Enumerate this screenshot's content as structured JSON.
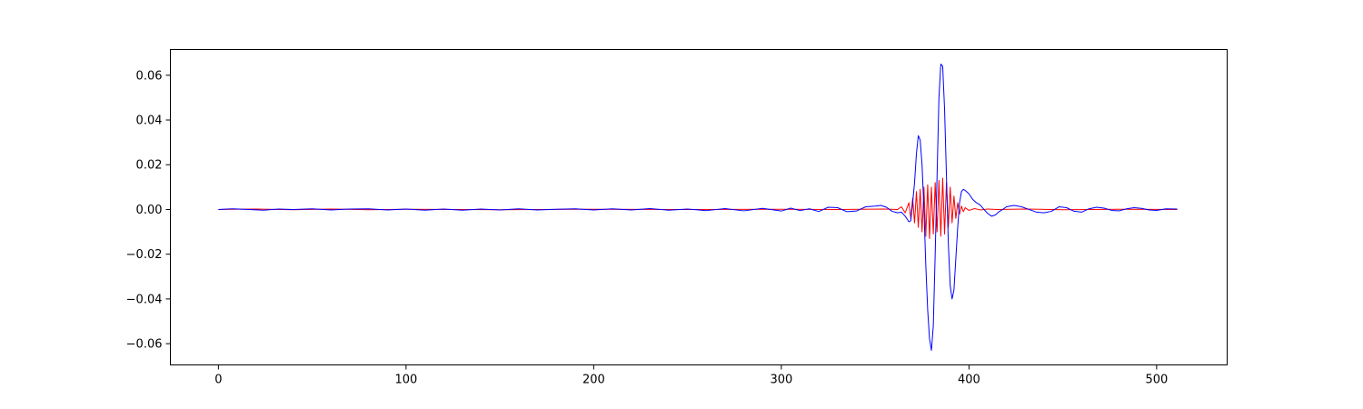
{
  "chart_data": {
    "type": "line",
    "title": "",
    "xlabel": "",
    "ylabel": "",
    "xlim": [
      -25.6,
      537.6
    ],
    "ylim": [
      -0.0695,
      0.0715
    ],
    "xticks": [
      0,
      100,
      200,
      300,
      400,
      500
    ],
    "xtick_labels": [
      "0",
      "100",
      "200",
      "300",
      "400",
      "500"
    ],
    "yticks": [
      -0.06,
      -0.04,
      -0.02,
      0.0,
      0.02,
      0.04,
      0.06
    ],
    "ytick_labels": [
      "−0.06",
      "−0.04",
      "−0.02",
      "0.00",
      "0.02",
      "0.04",
      "0.06"
    ],
    "grid": false,
    "legend": "none",
    "series": [
      {
        "color": "#ff0000",
        "points": [
          [
            0,
            0.0
          ],
          [
            20,
            0.0002
          ],
          [
            40,
            -0.0001
          ],
          [
            60,
            0.0002
          ],
          [
            80,
            -0.0001
          ],
          [
            100,
            0.0001
          ],
          [
            150,
            -0.0001
          ],
          [
            200,
            0.0001
          ],
          [
            250,
            0.0
          ],
          [
            300,
            0.0001
          ],
          [
            330,
            0.0
          ],
          [
            355,
            0.0002
          ],
          [
            362,
            0.0
          ],
          [
            364,
            0.0012
          ],
          [
            366,
            -0.0015
          ],
          [
            368,
            0.003
          ],
          [
            369,
            -0.004
          ],
          [
            370,
            0.005
          ],
          [
            371,
            -0.006
          ],
          [
            372,
            0.008
          ],
          [
            373,
            -0.008
          ],
          [
            374,
            0.009
          ],
          [
            375,
            -0.01
          ],
          [
            376,
            0.01
          ],
          [
            377,
            -0.012
          ],
          [
            378,
            0.011
          ],
          [
            379,
            -0.013
          ],
          [
            380,
            0.01
          ],
          [
            381,
            -0.011
          ],
          [
            382,
            0.012
          ],
          [
            383,
            -0.01
          ],
          [
            384,
            0.013
          ],
          [
            385,
            -0.012
          ],
          [
            386,
            0.014
          ],
          [
            387,
            -0.011
          ],
          [
            388,
            0.012
          ],
          [
            389,
            -0.008
          ],
          [
            390,
            0.01
          ],
          [
            391,
            -0.006
          ],
          [
            392,
            0.006
          ],
          [
            393,
            -0.004
          ],
          [
            394,
            0.003
          ],
          [
            395,
            -0.002
          ],
          [
            396,
            0.0015
          ],
          [
            397,
            -0.001
          ],
          [
            398,
            0.0008
          ],
          [
            400,
            -0.0004
          ],
          [
            403,
            0.0004
          ],
          [
            406,
            -0.0002
          ],
          [
            410,
            0.0002
          ],
          [
            415,
            0.0
          ],
          [
            430,
            0.0002
          ],
          [
            450,
            -0.0001
          ],
          [
            480,
            0.0001
          ],
          [
            511,
            0.0
          ]
        ]
      },
      {
        "color": "#0000ff",
        "points": [
          [
            0,
            0.0
          ],
          [
            8,
            0.0003
          ],
          [
            16,
            0.0
          ],
          [
            24,
            -0.0003
          ],
          [
            32,
            0.0002
          ],
          [
            40,
            0.0
          ],
          [
            50,
            0.0003
          ],
          [
            60,
            -0.0002
          ],
          [
            70,
            0.0002
          ],
          [
            80,
            0.0003
          ],
          [
            90,
            -0.0002
          ],
          [
            100,
            0.0002
          ],
          [
            110,
            -0.0003
          ],
          [
            120,
            0.0002
          ],
          [
            130,
            -0.0003
          ],
          [
            140,
            0.0002
          ],
          [
            150,
            -0.0002
          ],
          [
            160,
            0.0003
          ],
          [
            170,
            -0.0002
          ],
          [
            180,
            0.0001
          ],
          [
            190,
            0.0003
          ],
          [
            200,
            -0.0002
          ],
          [
            210,
            0.0003
          ],
          [
            220,
            -0.0002
          ],
          [
            230,
            0.0004
          ],
          [
            240,
            -0.0003
          ],
          [
            250,
            0.0002
          ],
          [
            260,
            -0.0005
          ],
          [
            270,
            0.0004
          ],
          [
            280,
            -0.0006
          ],
          [
            290,
            0.0005
          ],
          [
            300,
            -0.0007
          ],
          [
            305,
            0.0006
          ],
          [
            310,
            -0.0005
          ],
          [
            315,
            0.0003
          ],
          [
            320,
            -0.0009
          ],
          [
            325,
            0.001
          ],
          [
            330,
            0.0008
          ],
          [
            335,
            -0.001
          ],
          [
            340,
            -0.0007
          ],
          [
            345,
            0.0012
          ],
          [
            350,
            0.0015
          ],
          [
            353,
            0.0018
          ],
          [
            356,
            0.001
          ],
          [
            359,
            -0.0008
          ],
          [
            362,
            -0.0015
          ],
          [
            364,
            -0.0012
          ],
          [
            366,
            -0.003
          ],
          [
            368,
            -0.0055
          ],
          [
            369,
            -0.005
          ],
          [
            370,
            0.003
          ],
          [
            371,
            0.012
          ],
          [
            372,
            0.025
          ],
          [
            373,
            0.033
          ],
          [
            374,
            0.031
          ],
          [
            375,
            0.02
          ],
          [
            376,
            0.0
          ],
          [
            377,
            -0.025
          ],
          [
            378,
            -0.045
          ],
          [
            379,
            -0.058
          ],
          [
            380,
            -0.063
          ],
          [
            381,
            -0.052
          ],
          [
            382,
            -0.02
          ],
          [
            383,
            0.015
          ],
          [
            384,
            0.05
          ],
          [
            385,
            0.065
          ],
          [
            386,
            0.064
          ],
          [
            387,
            0.045
          ],
          [
            388,
            0.015
          ],
          [
            389,
            -0.015
          ],
          [
            390,
            -0.034
          ],
          [
            391,
            -0.04
          ],
          [
            392,
            -0.036
          ],
          [
            393,
            -0.022
          ],
          [
            394,
            -0.008
          ],
          [
            395,
            0.003
          ],
          [
            396,
            0.008
          ],
          [
            397,
            0.009
          ],
          [
            398,
            0.0085
          ],
          [
            400,
            0.007
          ],
          [
            402,
            0.0045
          ],
          [
            404,
            0.003
          ],
          [
            406,
            0.002
          ],
          [
            408,
            0.0
          ],
          [
            410,
            -0.0018
          ],
          [
            412,
            -0.003
          ],
          [
            414,
            -0.0025
          ],
          [
            416,
            -0.001
          ],
          [
            418,
            0.0
          ],
          [
            420,
            0.0012
          ],
          [
            424,
            0.0018
          ],
          [
            428,
            0.0012
          ],
          [
            432,
            0.0
          ],
          [
            436,
            -0.0012
          ],
          [
            440,
            -0.0015
          ],
          [
            444,
            -0.0008
          ],
          [
            448,
            0.0012
          ],
          [
            452,
            0.0008
          ],
          [
            456,
            -0.0008
          ],
          [
            460,
            -0.0012
          ],
          [
            464,
            0.0003
          ],
          [
            468,
            0.001
          ],
          [
            472,
            0.0006
          ],
          [
            476,
            -0.0004
          ],
          [
            480,
            -0.0006
          ],
          [
            484,
            0.0003
          ],
          [
            488,
            0.0008
          ],
          [
            492,
            0.0005
          ],
          [
            496,
            -0.0002
          ],
          [
            500,
            -0.0004
          ],
          [
            505,
            0.0003
          ],
          [
            511,
            0.0002
          ]
        ]
      }
    ]
  }
}
